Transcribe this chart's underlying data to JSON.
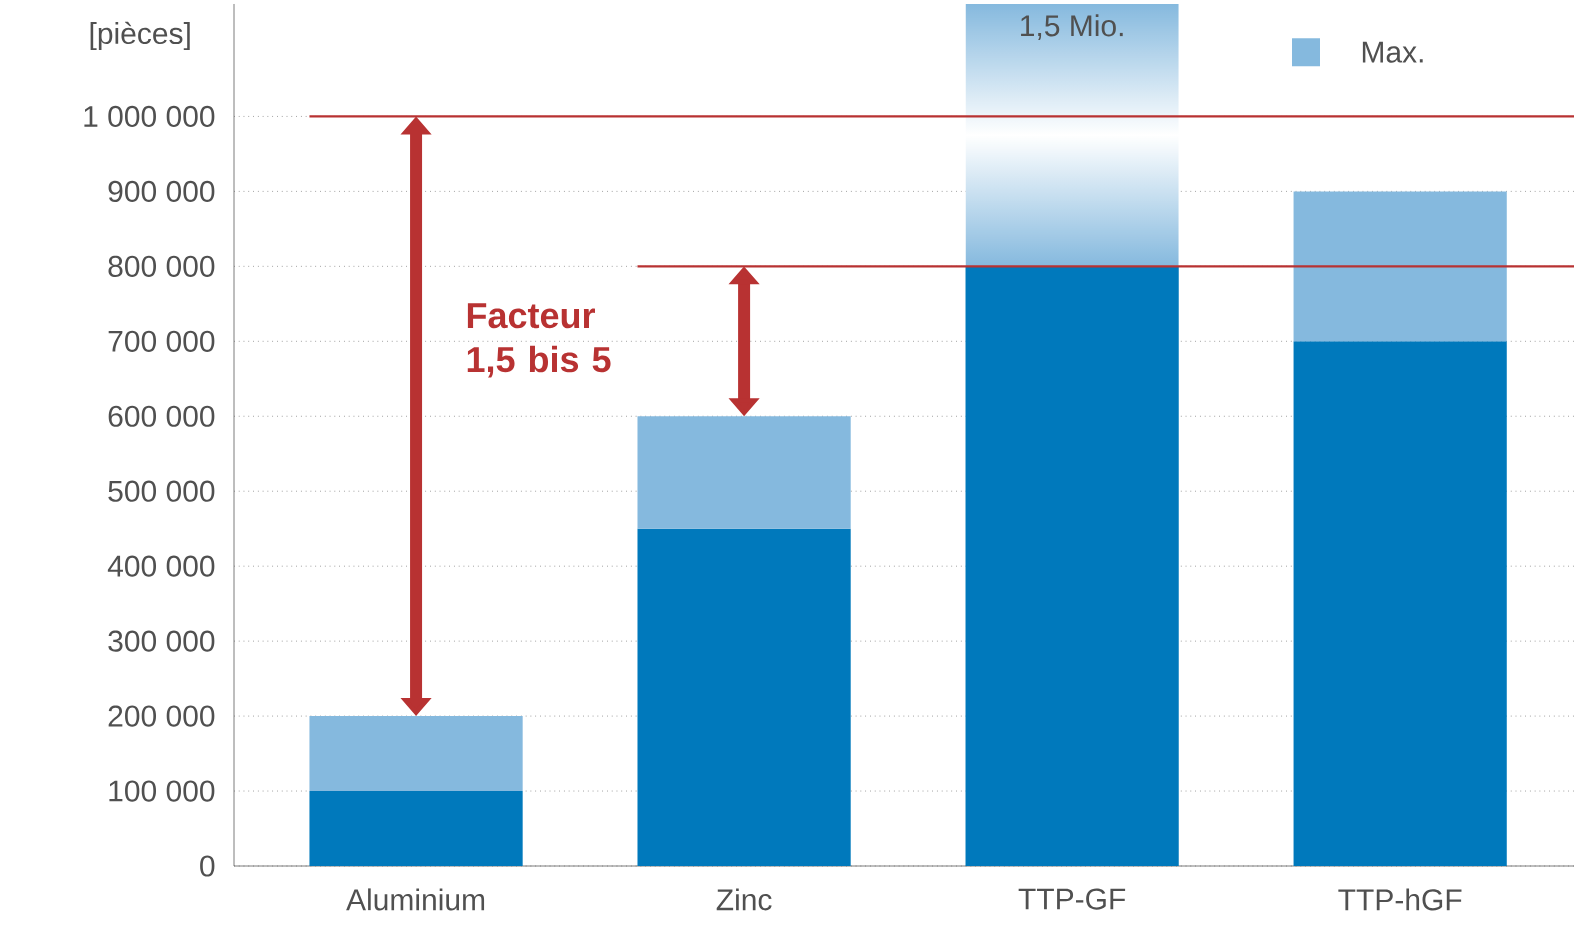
{
  "chart_data": {
    "type": "bar",
    "stacked": true,
    "ylabel": "[pièces]",
    "categories": [
      "Aluminium",
      "Zinc",
      "TTP-GF",
      "TTP-hGF"
    ],
    "series": [
      {
        "color": "#0079bc",
        "values": [
          100000,
          450000,
          800000,
          700000
        ]
      },
      {
        "name": "Max.",
        "color": "#85b9de",
        "values": [
          100000,
          150000,
          350000,
          200000
        ]
      }
    ],
    "ylim": [
      0,
      1150000
    ],
    "yticks": [
      0,
      {
        "value": 100000,
        "label": "100 000"
      },
      {
        "value": 200000,
        "label": "200 000"
      },
      {
        "value": 300000,
        "label": "300 000"
      },
      {
        "value": 400000,
        "label": "400 000"
      },
      {
        "value": 500000,
        "label": "500 000"
      },
      {
        "value": 600000,
        "label": "600 000"
      },
      {
        "value": 700000,
        "label": "700 000"
      },
      {
        "value": 800000,
        "label": "800 000"
      },
      {
        "value": 900000,
        "label": "900 000"
      },
      {
        "value": 1000000,
        "label": "1 000 000"
      }
    ],
    "grid": "y",
    "legend": "top right",
    "ref_lines": [
      {
        "axis": "y",
        "value": 1000000,
        "color": "#b83232"
      },
      {
        "axis": "y",
        "value": 800000,
        "color": "#b83232"
      }
    ],
    "annotations": [
      "Facteur 1,5 bis 5",
      "1,5 Mio."
    ]
  }
}
